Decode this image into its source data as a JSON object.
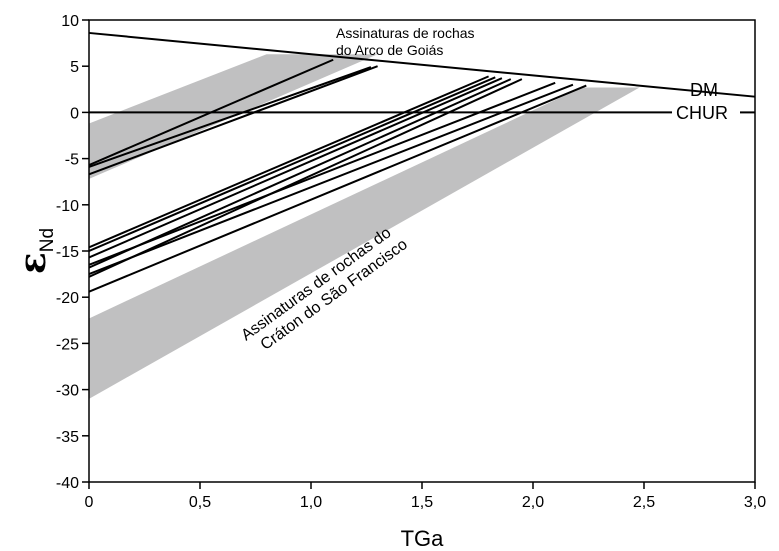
{
  "chart_data": {
    "type": "line",
    "xlabel": "TGa",
    "ylabel": {
      "symbol": "ε",
      "subscript": "Nd"
    },
    "xlim": [
      0,
      3
    ],
    "ylim": [
      -40,
      10
    ],
    "xticks": [
      0,
      0.5,
      1.0,
      1.5,
      2.0,
      2.5,
      3.0
    ],
    "xtick_labels": [
      "0",
      "0,5",
      "1,0",
      "1,5",
      "2,0",
      "2,5",
      "3,0"
    ],
    "yticks": [
      10,
      5,
      0,
      -5,
      -10,
      -15,
      -20,
      -25,
      -30,
      -35,
      -40
    ],
    "ytick_labels": [
      "10",
      "5",
      "0",
      "-5",
      "-10",
      "-15",
      "-20",
      "-25",
      "-30",
      "-35",
      "-40"
    ],
    "grid": false,
    "reference_curves": [
      {
        "name": "DM",
        "x": [
          0,
          3.0
        ],
        "y": [
          8.6,
          1.7
        ]
      },
      {
        "name": "CHUR",
        "x": [
          0,
          3.0
        ],
        "y": [
          0,
          0
        ]
      }
    ],
    "fields": [
      {
        "label": "Assinaturas de rochas do Arco de Goiás",
        "polygon": [
          [
            0,
            -1.2
          ],
          [
            0.8,
            6.3
          ],
          [
            1.3,
            6.3
          ],
          [
            0,
            -7.2
          ]
        ]
      },
      {
        "label": "Assinaturas de rochas do Cráton do São Francisco",
        "polygon": [
          [
            0,
            -22.3
          ],
          [
            2.22,
            2.7
          ],
          [
            2.48,
            2.7
          ],
          [
            0,
            -31.0
          ]
        ]
      }
    ],
    "series": [
      {
        "x": [
          0,
          1.1
        ],
        "y": [
          -5.7,
          5.7
        ]
      },
      {
        "x": [
          0,
          1.27
        ],
        "y": [
          -5.9,
          4.9
        ]
      },
      {
        "x": [
          0,
          1.3
        ],
        "y": [
          -6.7,
          5.0
        ]
      },
      {
        "x": [
          0,
          1.8
        ],
        "y": [
          -14.6,
          3.9
        ]
      },
      {
        "x": [
          0,
          1.83
        ],
        "y": [
          -15.0,
          3.8
        ]
      },
      {
        "x": [
          0,
          1.86
        ],
        "y": [
          -15.7,
          3.7
        ]
      },
      {
        "x": [
          0,
          1.9
        ],
        "y": [
          -16.8,
          3.6
        ]
      },
      {
        "x": [
          0,
          1.95
        ],
        "y": [
          -17.8,
          3.6
        ]
      },
      {
        "x": [
          0,
          2.1
        ],
        "y": [
          -16.5,
          3.2
        ]
      },
      {
        "x": [
          0,
          2.18
        ],
        "y": [
          -17.5,
          3.0
        ]
      },
      {
        "x": [
          0,
          2.24
        ],
        "y": [
          -19.4,
          2.9
        ]
      }
    ],
    "annotations": {
      "arco": [
        "Assinaturas de rochas",
        "do Arco de Goiás"
      ],
      "craton": [
        "Assinaturas de rochas do",
        "Cráton do São Francisco"
      ]
    },
    "colors": {
      "field": "#c0c0c1",
      "line": "#000000"
    }
  }
}
